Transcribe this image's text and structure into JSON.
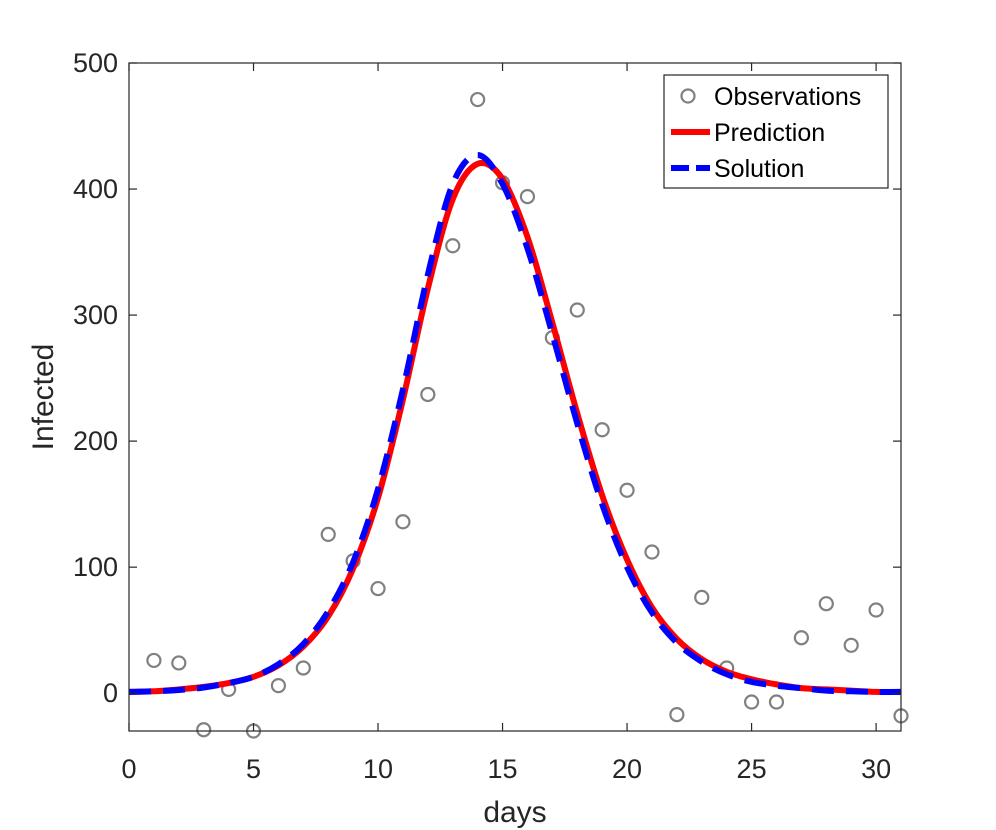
{
  "chart_data": {
    "type": "line",
    "xlabel": "days",
    "ylabel": "Infected",
    "xlim": [
      0,
      31
    ],
    "ylim": [
      -30,
      500
    ],
    "xticks": [
      "0",
      "5",
      "10",
      "15",
      "20",
      "25",
      "30"
    ],
    "yticks": [
      "0",
      "100",
      "200",
      "300",
      "400",
      "500"
    ],
    "grid": false,
    "legend_position": "top-right",
    "series": [
      {
        "name": "Observations",
        "style": "scatter",
        "color": "#808080",
        "x": [
          1,
          2,
          3,
          4,
          5,
          6,
          7,
          8,
          9,
          10,
          11,
          12,
          13,
          14,
          15,
          16,
          17,
          18,
          19,
          20,
          21,
          22,
          23,
          24,
          25,
          26,
          27,
          28,
          29,
          30,
          31
        ],
        "y": [
          26,
          24,
          -29,
          3,
          -30,
          6,
          20,
          126,
          105,
          83,
          136,
          237,
          355,
          471,
          405,
          394,
          282,
          304,
          209,
          161,
          112,
          -17,
          76,
          20,
          -7,
          -7,
          44,
          71,
          38,
          66,
          -18
        ]
      },
      {
        "name": "Prediction",
        "style": "solid",
        "color": "#ff0000",
        "x": [
          0,
          1,
          2,
          3,
          4,
          5,
          6,
          7,
          8,
          9,
          10,
          11,
          12,
          13,
          14,
          15,
          16,
          17,
          18,
          19,
          20,
          21,
          22,
          23,
          24,
          25,
          26,
          27,
          28,
          29,
          30,
          31
        ],
        "y": [
          1,
          1.5,
          3,
          5,
          8,
          13,
          22,
          37,
          61,
          99,
          155,
          233,
          321,
          392,
          420,
          408,
          362,
          294,
          222,
          157,
          106,
          68,
          43,
          27,
          17,
          11,
          7,
          4,
          3,
          2,
          1,
          1
        ]
      },
      {
        "name": "Solution",
        "style": "dashed",
        "color": "#0000ff",
        "x": [
          0,
          1,
          2,
          3,
          4,
          5,
          6,
          7,
          8,
          9,
          10,
          11,
          12,
          13,
          14,
          15,
          16,
          17,
          18,
          19,
          20,
          21,
          22,
          23,
          24,
          25,
          26,
          27,
          28,
          29,
          30,
          31
        ],
        "y": [
          1,
          1.5,
          2.5,
          4.5,
          8,
          13,
          23,
          39,
          65,
          104,
          162,
          241,
          332,
          404,
          427,
          404,
          353,
          285,
          214,
          150,
          100,
          64,
          40,
          25,
          15,
          9,
          6,
          4,
          2,
          1.5,
          1,
          1
        ]
      }
    ]
  }
}
